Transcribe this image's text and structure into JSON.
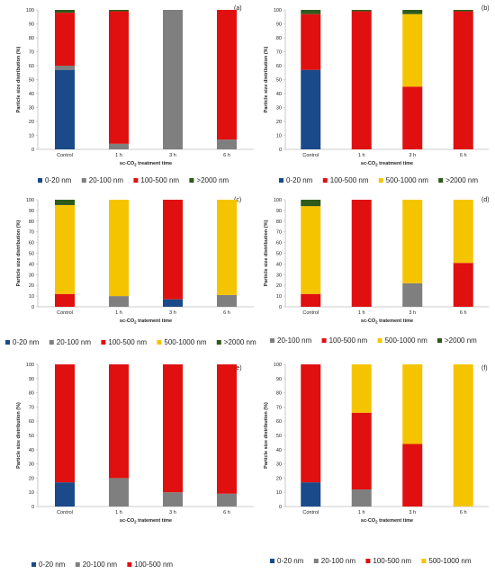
{
  "colors": {
    "0-20 nm": "#1a4a8a",
    "20-100 nm": "#7f7f7f",
    "100-500 nm": "#e01010",
    "500-1000 nm": "#f5c400",
    ">2000 nm": "#2e5a1c"
  },
  "chart_data": [
    {
      "type": "bar",
      "stacked": true,
      "panel_label": "(a)",
      "categories": [
        "Control",
        "1 h",
        "3 h",
        "6 h"
      ],
      "xlabel": "sc-CO2 treatment time",
      "ylabel": "Particle size distribution (%)",
      "ylim": [
        0,
        100
      ],
      "yticks": [
        0,
        10,
        20,
        30,
        40,
        50,
        60,
        70,
        80,
        90,
        100
      ],
      "legend": [
        "0-20 nm",
        "20-100 nm",
        "100-500 nm",
        ">2000 nm"
      ],
      "series": [
        {
          "name": "0-20 nm",
          "values": [
            57,
            0,
            0,
            0
          ]
        },
        {
          "name": "20-100 nm",
          "values": [
            3,
            4,
            100,
            7
          ]
        },
        {
          "name": "100-500 nm",
          "values": [
            38,
            95,
            0,
            93
          ]
        },
        {
          "name": ">2000 nm",
          "values": [
            2,
            1,
            0,
            0
          ]
        }
      ]
    },
    {
      "type": "bar",
      "stacked": true,
      "panel_label": "(b)",
      "categories": [
        "Control",
        "1 h",
        "3 h",
        "6 h"
      ],
      "xlabel": "sc-CO2 treatment time",
      "ylabel": "Particle size distribution (%)",
      "ylim": [
        0,
        100
      ],
      "yticks": [
        0,
        10,
        20,
        30,
        40,
        50,
        60,
        70,
        80,
        90,
        100
      ],
      "legend": [
        "0-20 nm",
        "100-500 nm",
        "500-1000 nm",
        ">2000 nm"
      ],
      "series": [
        {
          "name": "0-20 nm",
          "values": [
            57,
            0,
            0,
            0
          ]
        },
        {
          "name": "100-500 nm",
          "values": [
            40,
            99,
            45,
            99
          ]
        },
        {
          "name": "500-1000 nm",
          "values": [
            0,
            0,
            52,
            0
          ]
        },
        {
          "name": ">2000 nm",
          "values": [
            3,
            1,
            3,
            1
          ]
        }
      ]
    },
    {
      "type": "bar",
      "stacked": true,
      "panel_label": "(c)",
      "categories": [
        "Control",
        "1 h",
        "3 h",
        "6 h"
      ],
      "xlabel": "sc-CO2 tratement time",
      "ylabel": "Particle size distribution (%)",
      "ylim": [
        0,
        100
      ],
      "yticks": [
        0,
        10,
        20,
        30,
        40,
        50,
        60,
        70,
        80,
        90,
        100
      ],
      "legend": [
        "0-20 nm",
        "20-100 nm",
        "100-500 nm",
        "500-1000 nm",
        ">2000 nm"
      ],
      "series": [
        {
          "name": "0-20 nm",
          "values": [
            0,
            0,
            7,
            0
          ]
        },
        {
          "name": "20-100 nm",
          "values": [
            0,
            10,
            0,
            11
          ]
        },
        {
          "name": "100-500 nm",
          "values": [
            12,
            0,
            93,
            0
          ]
        },
        {
          "name": "500-1000 nm",
          "values": [
            83,
            90,
            0,
            89
          ]
        },
        {
          "name": ">2000 nm",
          "values": [
            5,
            0,
            0,
            0
          ]
        }
      ]
    },
    {
      "type": "bar",
      "stacked": true,
      "panel_label": "(d)",
      "categories": [
        "Control",
        "1 h",
        "3 h",
        "6 h"
      ],
      "xlabel": "sc-CO2 tratement time",
      "ylabel": "Particle size distribution (%)",
      "ylim": [
        0,
        100
      ],
      "yticks": [
        0,
        10,
        20,
        30,
        40,
        50,
        60,
        70,
        80,
        90,
        100
      ],
      "legend": [
        "20-100 nm",
        "100-500 nm",
        "500-1000 nm",
        ">2000 nm"
      ],
      "series": [
        {
          "name": "20-100 nm",
          "values": [
            0,
            0,
            22,
            0
          ]
        },
        {
          "name": "100-500 nm",
          "values": [
            12,
            100,
            0,
            41
          ]
        },
        {
          "name": "500-1000 nm",
          "values": [
            82,
            0,
            78,
            59
          ]
        },
        {
          "name": ">2000 nm",
          "values": [
            6,
            0,
            0,
            0
          ]
        }
      ]
    },
    {
      "type": "bar",
      "stacked": true,
      "panel_label": "(e)",
      "categories": [
        "Control",
        "1 h",
        "3 h",
        "6 h"
      ],
      "xlabel": "sc-CO2 tratement time",
      "ylabel": "Particle size distribution (%)",
      "ylim": [
        0,
        100
      ],
      "yticks": [
        0,
        10,
        20,
        30,
        40,
        50,
        60,
        70,
        80,
        90,
        100
      ],
      "legend": [
        "0-20 nm",
        "20-100 nm",
        "100-500 nm"
      ],
      "series": [
        {
          "name": "0-20 nm",
          "values": [
            17,
            0,
            0,
            0
          ]
        },
        {
          "name": "20-100 nm",
          "values": [
            0,
            20,
            10,
            9
          ]
        },
        {
          "name": "100-500 nm",
          "values": [
            83,
            80,
            90,
            91
          ]
        }
      ]
    },
    {
      "type": "bar",
      "stacked": true,
      "panel_label": "(f)",
      "categories": [
        "Control",
        "1 h",
        "3 h",
        "6 h"
      ],
      "xlabel": "sc-CO2 tratement time",
      "ylabel": "Particle size distribution (%)",
      "ylim": [
        0,
        100
      ],
      "yticks": [
        0,
        10,
        20,
        30,
        40,
        50,
        60,
        70,
        80,
        90,
        100
      ],
      "legend": [
        "0-20 nm",
        "20-100 nm",
        "100-500 nm",
        "500-1000 nm"
      ],
      "series": [
        {
          "name": "0-20 nm",
          "values": [
            17,
            0,
            0,
            0
          ]
        },
        {
          "name": "20-100 nm",
          "values": [
            0,
            12,
            0,
            0
          ]
        },
        {
          "name": "100-500 nm",
          "values": [
            83,
            54,
            44,
            0
          ]
        },
        {
          "name": "500-1000 nm",
          "values": [
            0,
            34,
            56,
            100
          ]
        }
      ]
    }
  ]
}
